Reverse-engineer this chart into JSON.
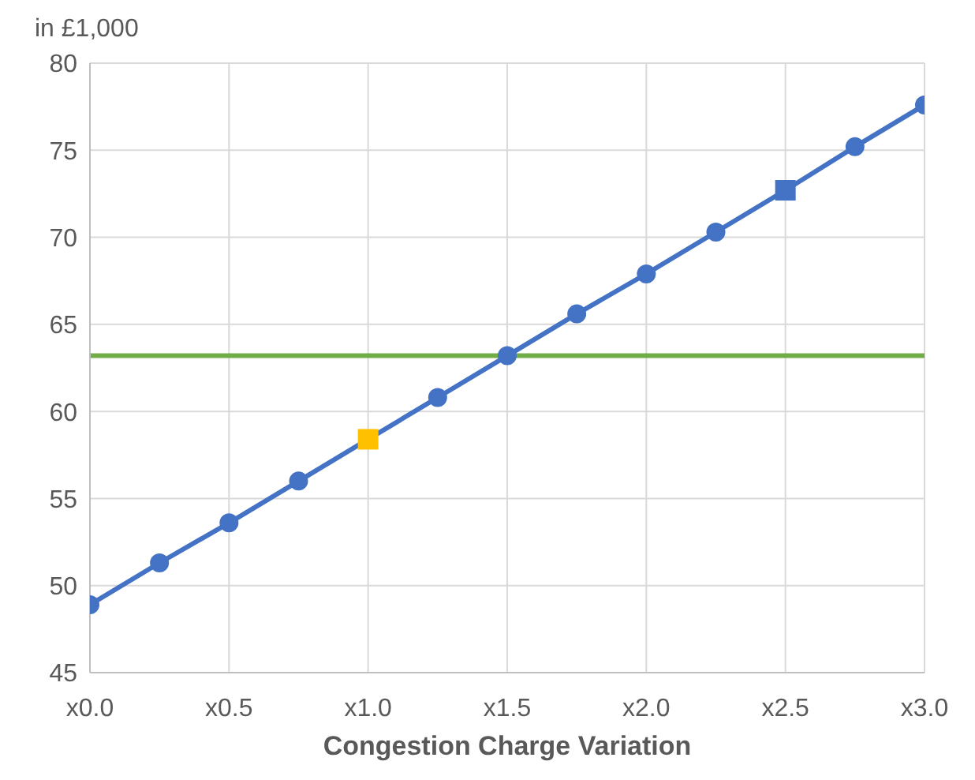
{
  "chart_data": {
    "type": "line",
    "ylabel": "in £1,000",
    "xlabel": "Congestion Charge Variation",
    "categories": [
      "x0.0",
      null,
      "x0.5",
      null,
      "x1.0",
      null,
      "x1.5",
      null,
      "x2.0",
      null,
      "x2.5",
      null,
      "x3.0"
    ],
    "ylim": [
      45,
      80
    ],
    "yticks": [
      45,
      50,
      55,
      60,
      65,
      70,
      75,
      80
    ],
    "grid": true,
    "marker": "circle",
    "ref_lines": [
      {
        "axis": "y",
        "value": 63.2,
        "color": "#70ad47"
      }
    ],
    "series": [
      {
        "color": "#4472c4",
        "values": [
          48.9,
          51.3,
          53.6,
          56.0,
          58.4,
          60.8,
          63.2,
          65.6,
          67.9,
          70.3,
          72.7,
          75.2,
          77.6
        ]
      },
      {
        "type": "scatter",
        "color": "#ffc000",
        "marker": "square",
        "x": [
          "x1.0"
        ],
        "values": [
          58.4
        ]
      },
      {
        "type": "scatter",
        "color": "#4472c4",
        "marker": "square",
        "x": [
          "x2.5"
        ],
        "values": [
          72.7
        ]
      }
    ]
  }
}
